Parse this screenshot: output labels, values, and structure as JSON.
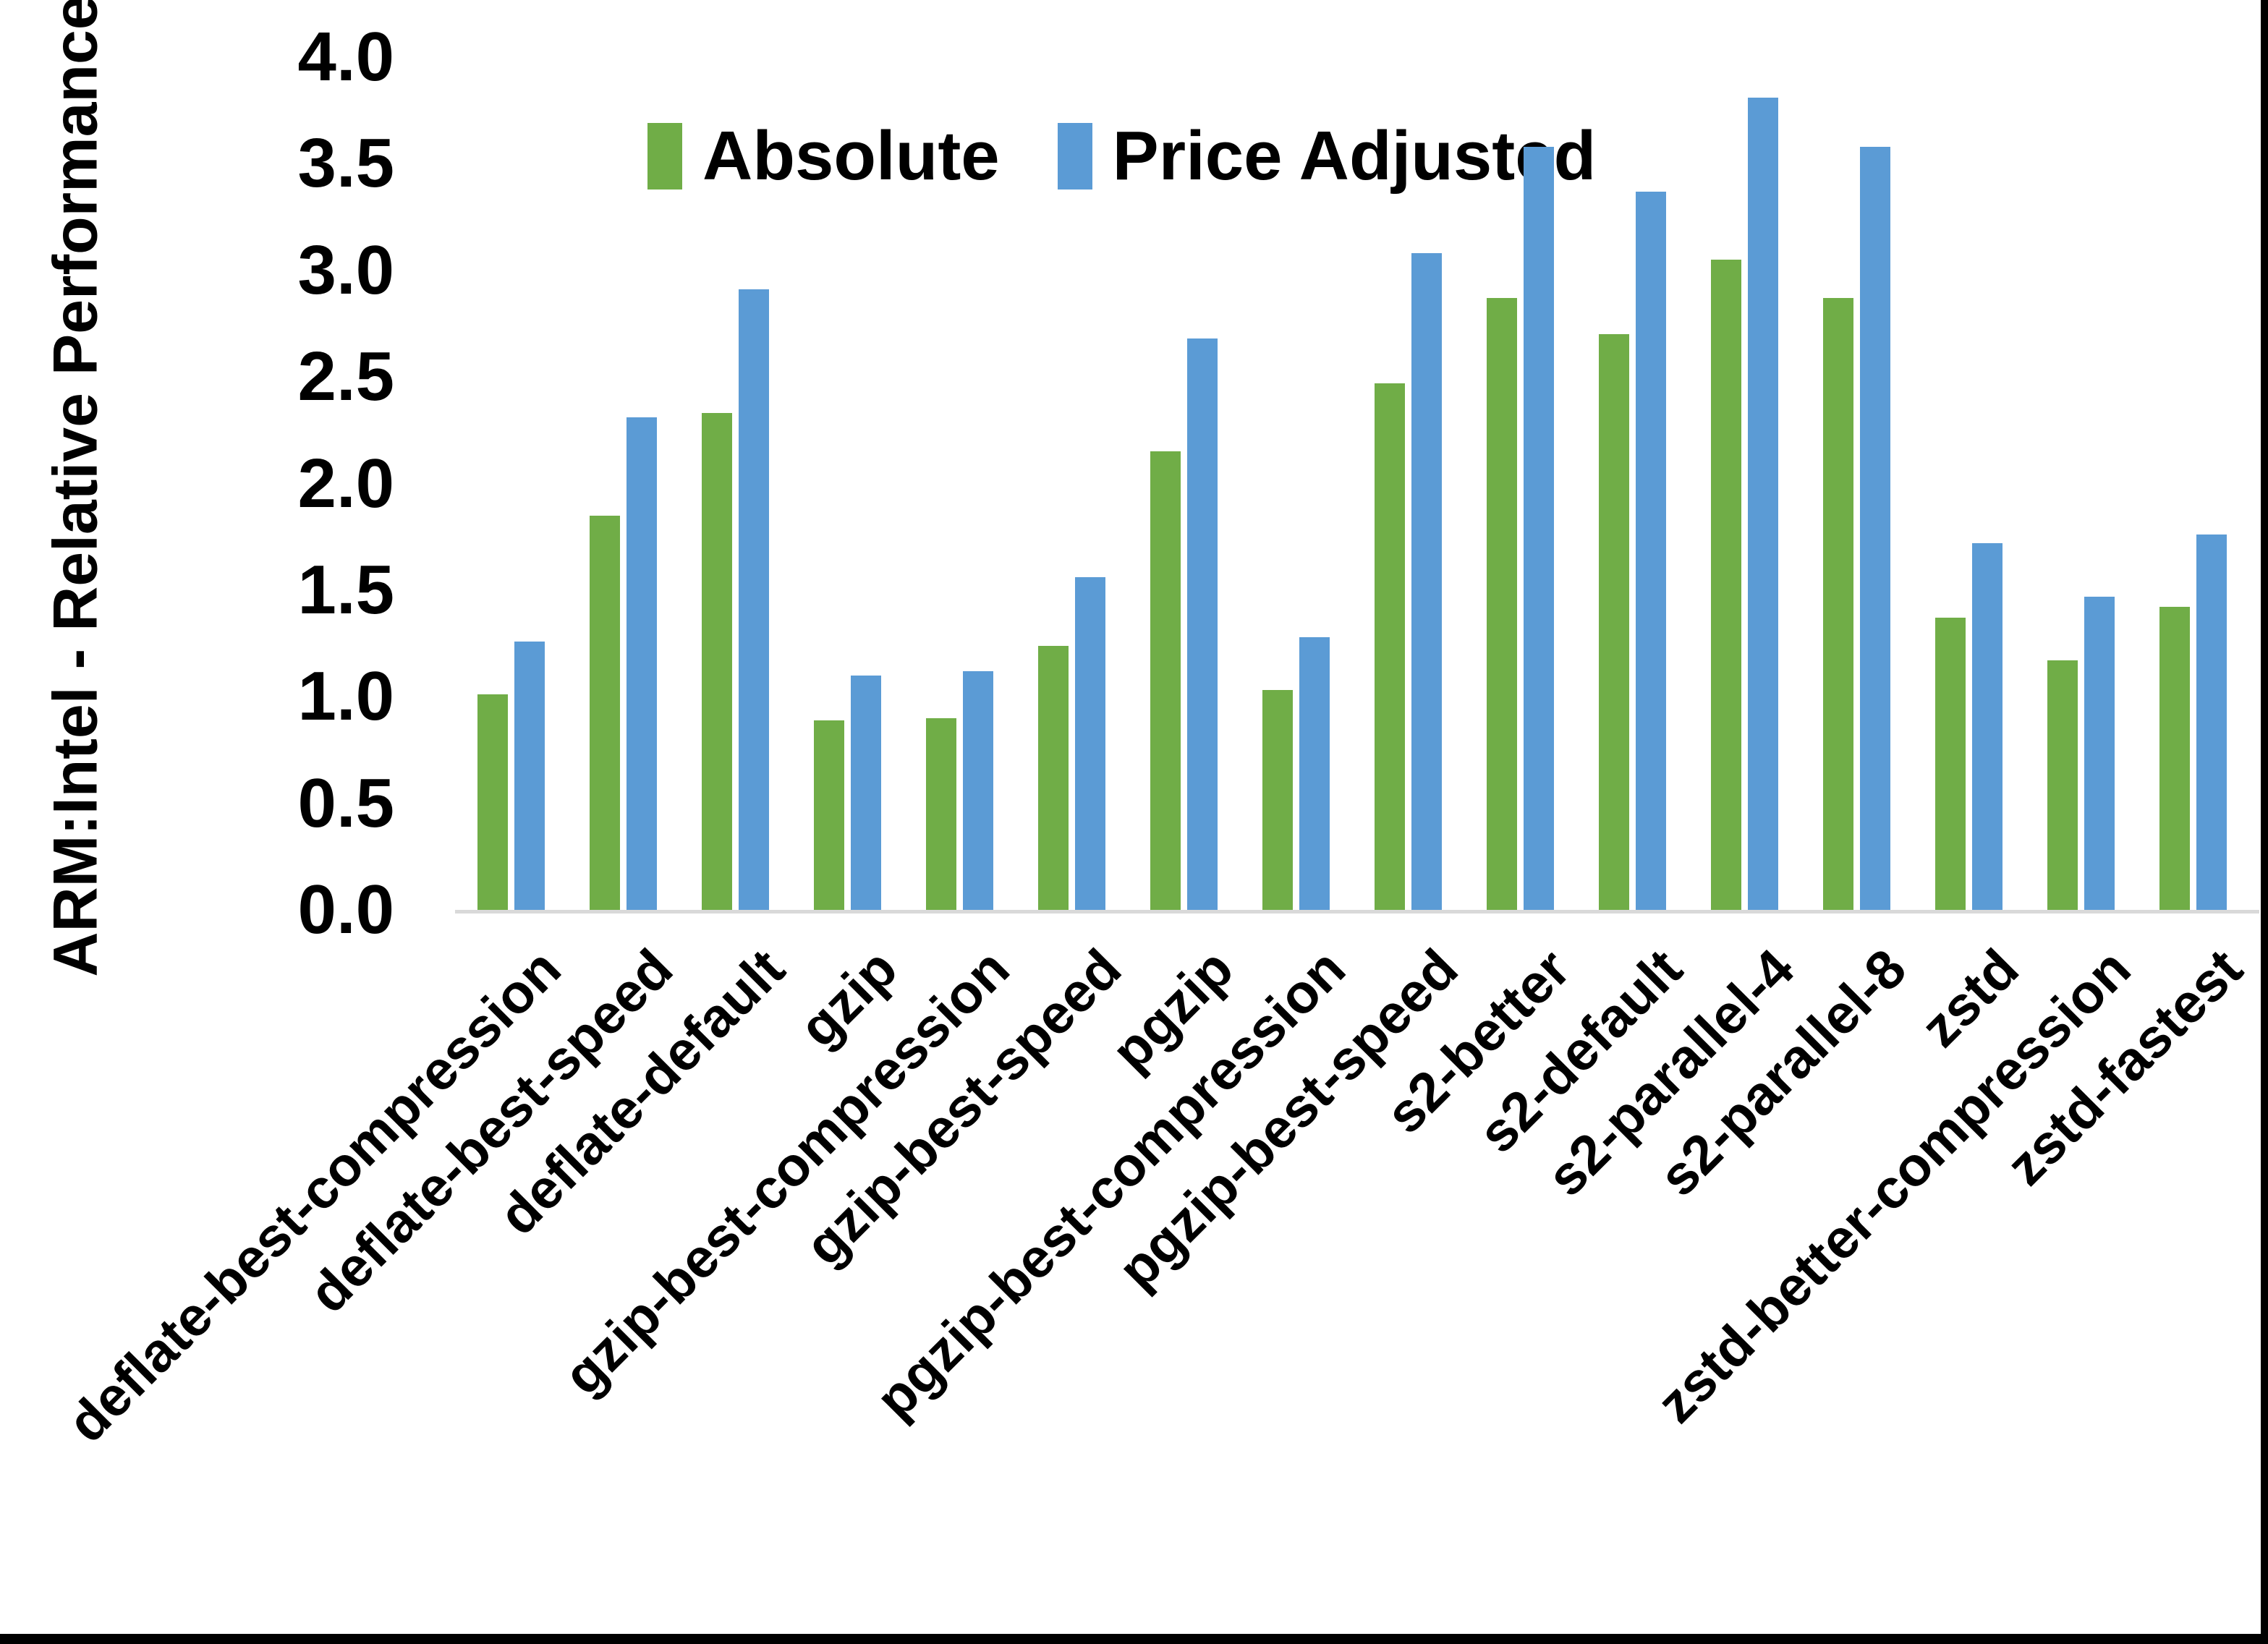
{
  "chart": {
    "y_axis_title": "ARM:Intel - Relative Performance"
  },
  "chart_data": {
    "type": "bar",
    "title": "",
    "xlabel": "",
    "ylabel": "ARM:Intel - Relative Performance",
    "ylim": [
      0,
      4.0
    ],
    "y_tick_step": 0.5,
    "y_ticks": [
      "0.0",
      "0.5",
      "1.0",
      "1.5",
      "2.0",
      "2.5",
      "3.0",
      "3.5",
      "4.0"
    ],
    "grid": false,
    "legend_position": "top-center",
    "categories": [
      "deflate-best-compression",
      "deflate-best-speed",
      "deflate-default",
      "gzip",
      "gzip-best-compression",
      "gzip-best-speed",
      "pgzip",
      "pgzip-best-compression",
      "pgzip-best-speed",
      "s2-better",
      "s2-default",
      "s2-parallel-4",
      "s2-parallel-8",
      "zstd",
      "zstd-better-compression",
      "zstd-fastest"
    ],
    "series": [
      {
        "name": "Absolute",
        "color": "#70AD47",
        "values": [
          1.01,
          1.85,
          2.33,
          0.89,
          0.9,
          1.24,
          2.15,
          1.03,
          2.47,
          2.87,
          2.7,
          3.05,
          2.87,
          1.37,
          1.17,
          1.42
        ]
      },
      {
        "name": "Price Adjusted",
        "color": "#5B9BD5",
        "values": [
          1.26,
          2.31,
          2.91,
          1.1,
          1.12,
          1.56,
          2.68,
          1.28,
          3.08,
          3.58,
          3.37,
          3.81,
          3.58,
          1.72,
          1.47,
          1.76
        ]
      }
    ],
    "axis_line_color": "#D9D9D9",
    "frame_border_color": "#000000"
  }
}
